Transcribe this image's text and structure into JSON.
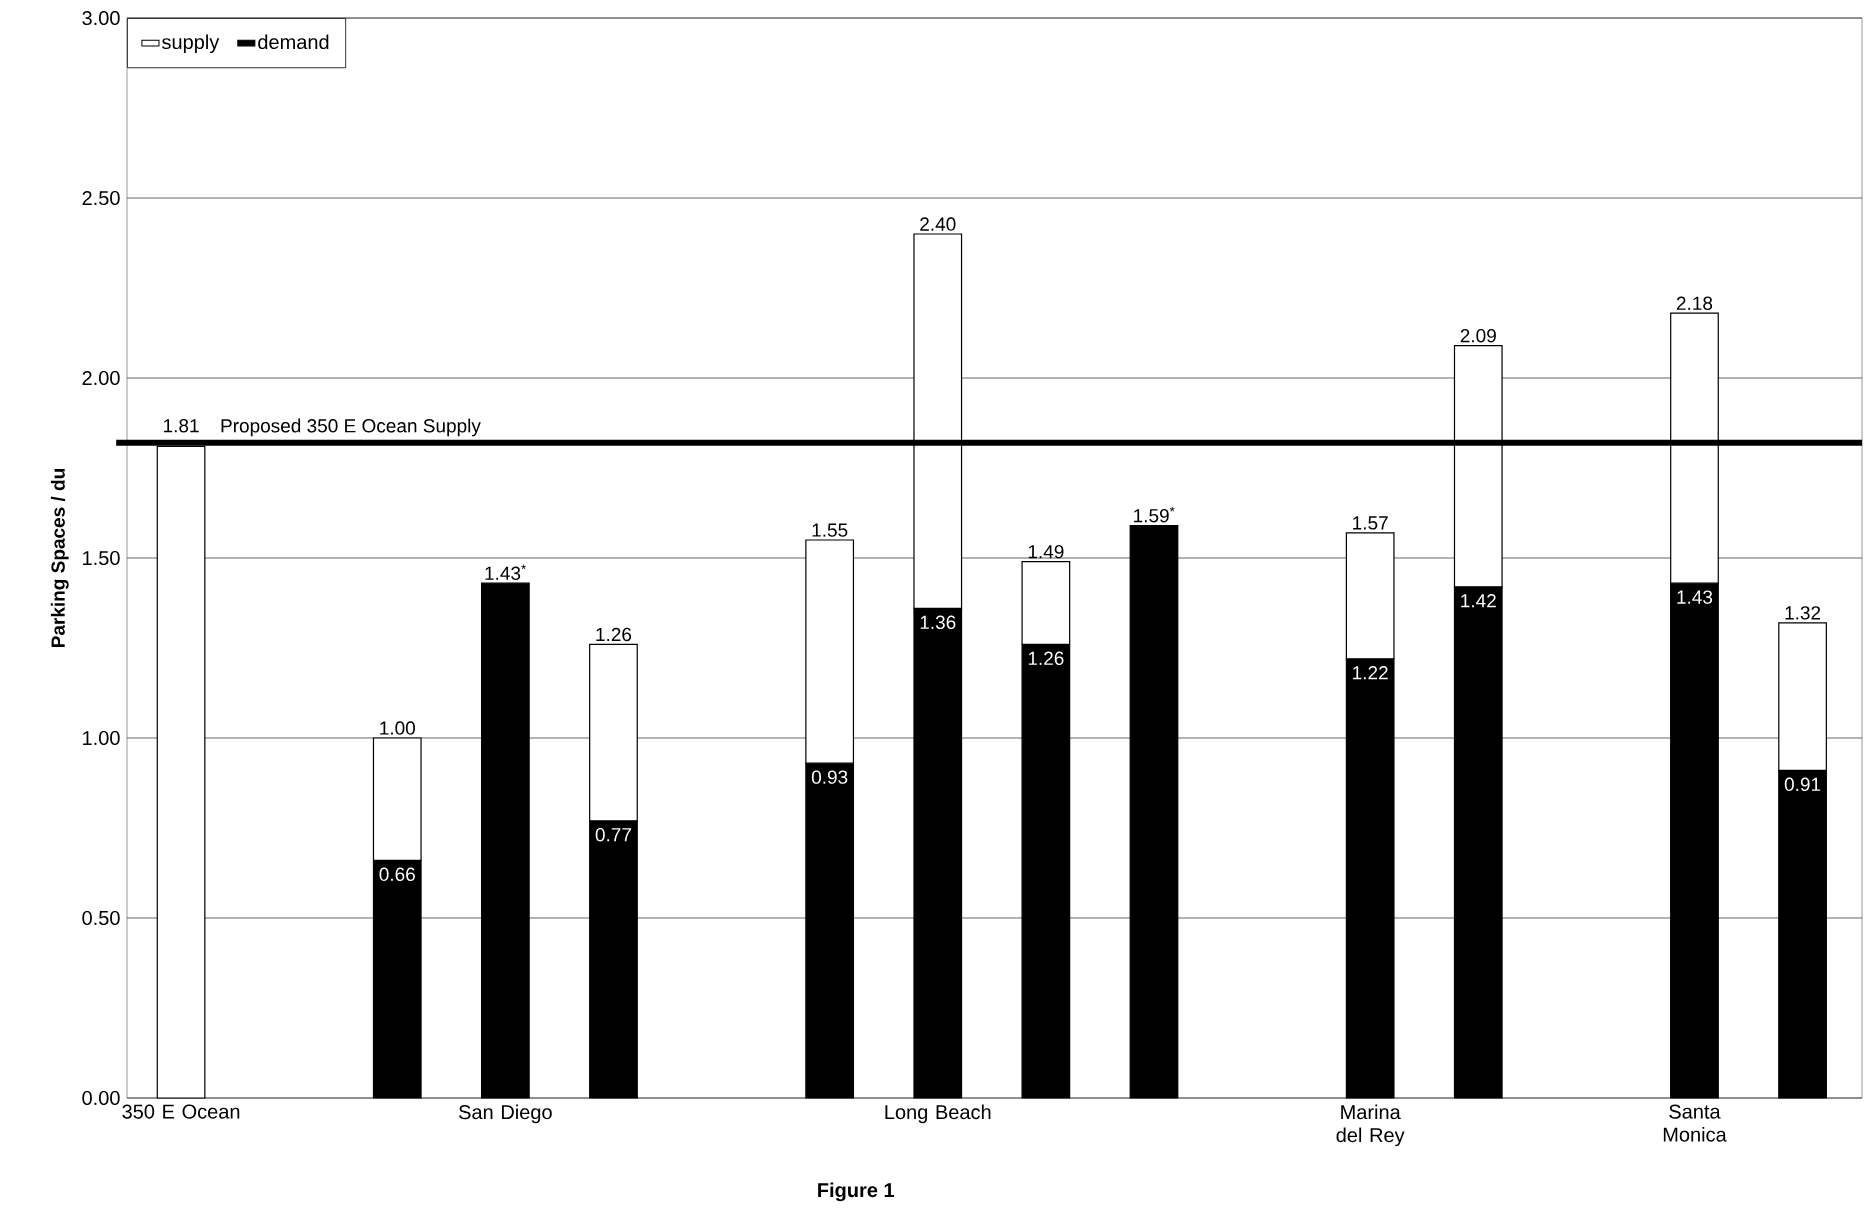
{
  "chart_data": {
    "type": "bar",
    "stacked": true,
    "ylabel": "Parking Spaces / du",
    "categories": [
      "350 E Ocean",
      null,
      null,
      "San Diego",
      null,
      null,
      null,
      "Long Beach",
      null,
      null,
      null,
      "Marina del Rey",
      null,
      null,
      "Santa Monica",
      null
    ],
    "series": [
      {
        "name": "demand",
        "color": "#000000",
        "values": [
          null,
          null,
          0.66,
          1.43,
          0.77,
          null,
          0.93,
          1.36,
          1.26,
          1.59,
          null,
          1.22,
          1.42,
          null,
          1.43,
          0.91
        ],
        "value_labels": [
          null,
          null,
          "0.66",
          "1.43$^{*}$",
          "0.77",
          null,
          "0.93",
          "1.36",
          "1.26",
          "1.59$^{*}$",
          null,
          "1.22",
          "1.42",
          null,
          "1.43",
          "0.91"
        ]
      },
      {
        "name": "supply",
        "color": "#ffffff",
        "values": [
          1.81,
          null,
          0.34,
          null,
          0.49,
          null,
          0.62,
          1.04,
          0.23,
          null,
          null,
          0.35,
          0.67,
          null,
          0.75,
          0.41
        ]
      }
    ],
    "totals": [
      "1.81",
      null,
      "1.00",
      null,
      "1.26",
      null,
      "1.55",
      "2.40",
      "1.49",
      null,
      null,
      "1.57",
      "2.09",
      null,
      "2.18",
      "1.32"
    ],
    "ylim": [
      0,
      3
    ],
    "yticks": [
      {
        "value": 0,
        "label": "0.00"
      },
      {
        "value": 0.5,
        "label": "0.50"
      },
      {
        "value": 1,
        "label": "1.00"
      },
      {
        "value": 1.5,
        "label": "1.50"
      },
      {
        "value": 2,
        "label": "2.00"
      },
      {
        "value": 2.5,
        "label": "2.50"
      },
      {
        "value": 3,
        "label": "3.00"
      }
    ],
    "grid": "y",
    "legend": "top left",
    "ref_lines": [
      {
        "axis": "y",
        "value": 1.82,
        "label": "Proposed 350 E Ocean Supply",
        "color": "#000000"
      }
    ],
    "annotations": [
      "Figure 1"
    ]
  }
}
